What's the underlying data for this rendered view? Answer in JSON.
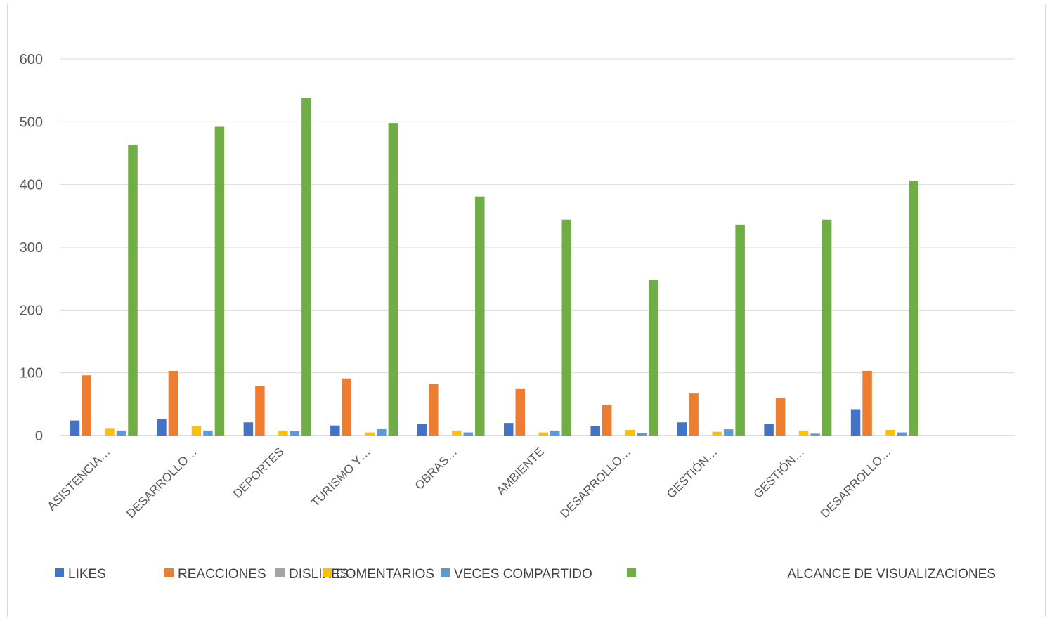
{
  "chart_data": {
    "type": "bar",
    "title": "",
    "xlabel": "",
    "ylabel": "",
    "ylim": [
      0,
      600
    ],
    "yticks": [
      0,
      100,
      200,
      300,
      400,
      500,
      600
    ],
    "grid": true,
    "legend_position": "bottom",
    "categories": [
      "ASISTENCIA…",
      "DESARROLLO…",
      "DEPORTES",
      "TURISMO Y…",
      "OBRAS…",
      "AMBIENTE",
      "DESARROLLO…",
      "GESTIÓN…",
      "GESTIÓN…",
      "DESARROLLO…"
    ],
    "series": [
      {
        "name": "LIKES",
        "color": "#4472C4",
        "values": [
          24,
          26,
          21,
          16,
          18,
          20,
          15,
          21,
          18,
          42
        ]
      },
      {
        "name": "REACCIONES",
        "color": "#ED7D31",
        "values": [
          96,
          103,
          79,
          91,
          82,
          74,
          49,
          67,
          60,
          103
        ]
      },
      {
        "name": "DISLIKES",
        "color": "#A5A5A5",
        "values": [
          0,
          0,
          0,
          0,
          0,
          0,
          0,
          0,
          0,
          0
        ]
      },
      {
        "name": "COMENTARIOS",
        "color": "#FFC000",
        "values": [
          12,
          15,
          8,
          5,
          8,
          5,
          9,
          6,
          8,
          9
        ]
      },
      {
        "name": "VECES COMPARTIDO",
        "color": "#5B9BD5",
        "values": [
          8,
          8,
          7,
          11,
          5,
          8,
          4,
          10,
          3,
          5
        ]
      },
      {
        "name": "ALCANCE DE VISUALIZACIONES",
        "color": "#70AD47",
        "values": [
          463,
          492,
          538,
          498,
          381,
          344,
          248,
          336,
          344,
          406
        ]
      }
    ]
  }
}
